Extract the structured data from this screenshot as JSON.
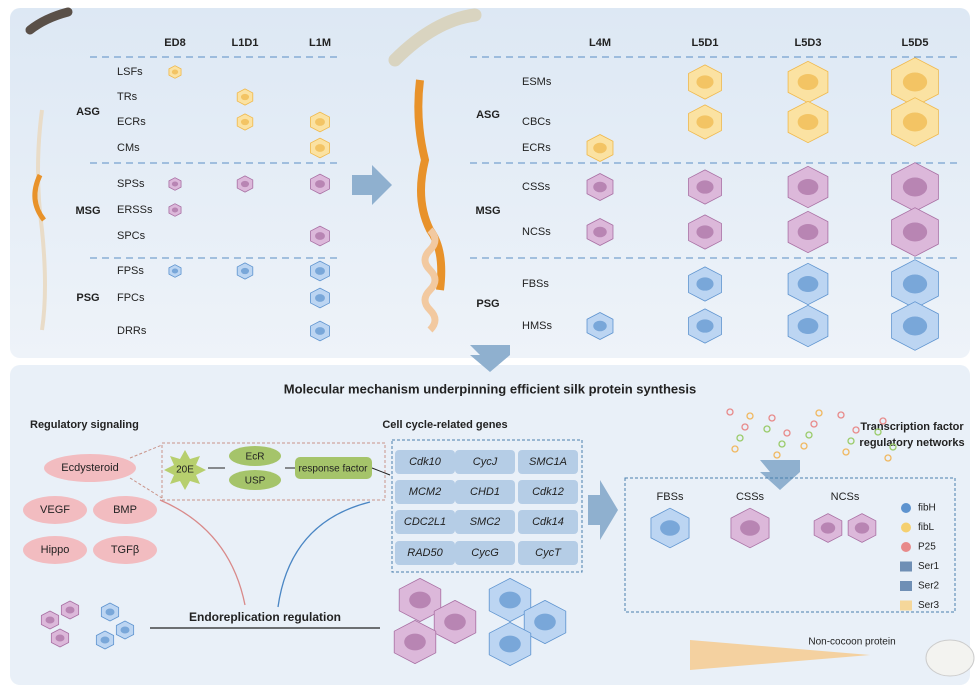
{
  "top": {
    "left": {
      "columns": [
        "ED8",
        "L1D1",
        "L1M"
      ],
      "groups": [
        {
          "label": "ASG",
          "rows": [
            "LSFs",
            "TRs",
            "ECRs",
            "CMs"
          ]
        },
        {
          "label": "MSG",
          "rows": [
            "SPSs",
            "ERSSs",
            "SPCs"
          ]
        },
        {
          "label": "PSG",
          "rows": [
            "FPSs",
            "FPCs",
            "DRRs"
          ]
        }
      ]
    },
    "right": {
      "columns": [
        "L4M",
        "L5D1",
        "L5D3",
        "L5D5"
      ],
      "groups": [
        {
          "label": "ASG",
          "rows": [
            "ESMs",
            "CBCs",
            "ECRs"
          ]
        },
        {
          "label": "MSG",
          "rows": [
            "CSSs",
            "NCSs"
          ]
        },
        {
          "label": "PSG",
          "rows": [
            "FBSs",
            "HMSs"
          ]
        }
      ]
    }
  },
  "bottom": {
    "title": "Molecular mechanism underpinning efficient silk protein synthesis",
    "signaling": {
      "title": "Regulatory signaling",
      "factors": [
        "Ecdysteroid",
        "VEGF",
        "BMP",
        "Hippo",
        "TGFβ"
      ]
    },
    "pathway": {
      "ligand": "20E",
      "receptors": [
        "EcR",
        "USP"
      ],
      "response": "response factor"
    },
    "cell_cycle": {
      "title": "Cell cycle-related genes",
      "genes": [
        [
          "Cdk10",
          "CycJ",
          "SMC1A"
        ],
        [
          "MCM2",
          "CHD1",
          "Cdk12"
        ],
        [
          "CDC2L1",
          "SMC2",
          "Cdk14"
        ],
        [
          "RAD50",
          "CycG",
          "CycT"
        ]
      ]
    },
    "endoreplication": "Endoreplication regulation",
    "tf_network": {
      "title_lines": [
        "Transcription factor",
        "regulatory networks"
      ],
      "cell_types": [
        "FBSs",
        "CSSs",
        "NCSs"
      ],
      "legend": [
        "fibH",
        "fibL",
        "P25",
        "Ser1",
        "Ser2",
        "Ser3"
      ],
      "note": "Non-cocoon protein"
    }
  }
}
